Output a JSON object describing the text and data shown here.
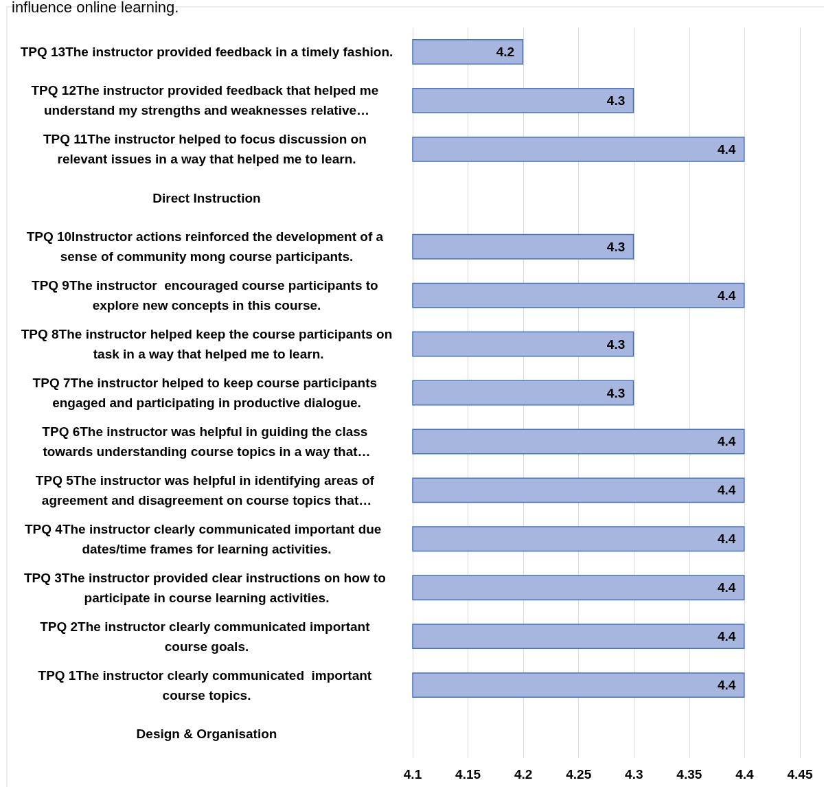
{
  "chart_data": {
    "type": "bar",
    "orientation": "horizontal",
    "title": "influence online learning.",
    "categories": [
      "TPQ 13The instructor provided feedback in a timely fashion.",
      "TPQ 12The instructor provided feedback that helped me understand my strengths and weaknesses relative…",
      "TPQ 11The instructor helped to focus discussion on relevant issues in a way that helped me to learn.",
      "Direct Instruction",
      "TPQ 10Instructor actions reinforced the development of a sense of community mong course participants.",
      "TPQ 9The instructor  encouraged course participants to explore new concepts in this course.",
      "TPQ 8The instructor helped keep the course participants on task in a way that helped me to learn.",
      "TPQ 7The instructor helped to keep course participants engaged and participating in productive dialogue.",
      "TPQ 6The instructor was helpful in guiding the class towards understanding course topics in a way that…",
      "TPQ 5The instructor was helpful in identifying areas of agreement and disagreement on course topics that…",
      "TPQ 4The instructor clearly communicated important due  dates/time frames for learning activities.",
      "TPQ 3The instructor provided clear instructions on how to participate in course learning activities.",
      "TPQ 2The instructor clearly communicated important course goals.",
      "TPQ 1The instructor clearly communicated  important course topics.",
      "Design & Organisation"
    ],
    "values": [
      4.2,
      4.3,
      4.4,
      null,
      4.3,
      4.4,
      4.3,
      4.3,
      4.4,
      4.4,
      4.4,
      4.4,
      4.4,
      4.4,
      null
    ],
    "color": "#a7b6de",
    "xlim": [
      4.1,
      4.45
    ],
    "xticks": [
      4.1,
      4.15,
      4.2,
      4.25,
      4.3,
      4.35,
      4.4,
      4.45
    ],
    "grid": "x",
    "data_labels": true
  }
}
